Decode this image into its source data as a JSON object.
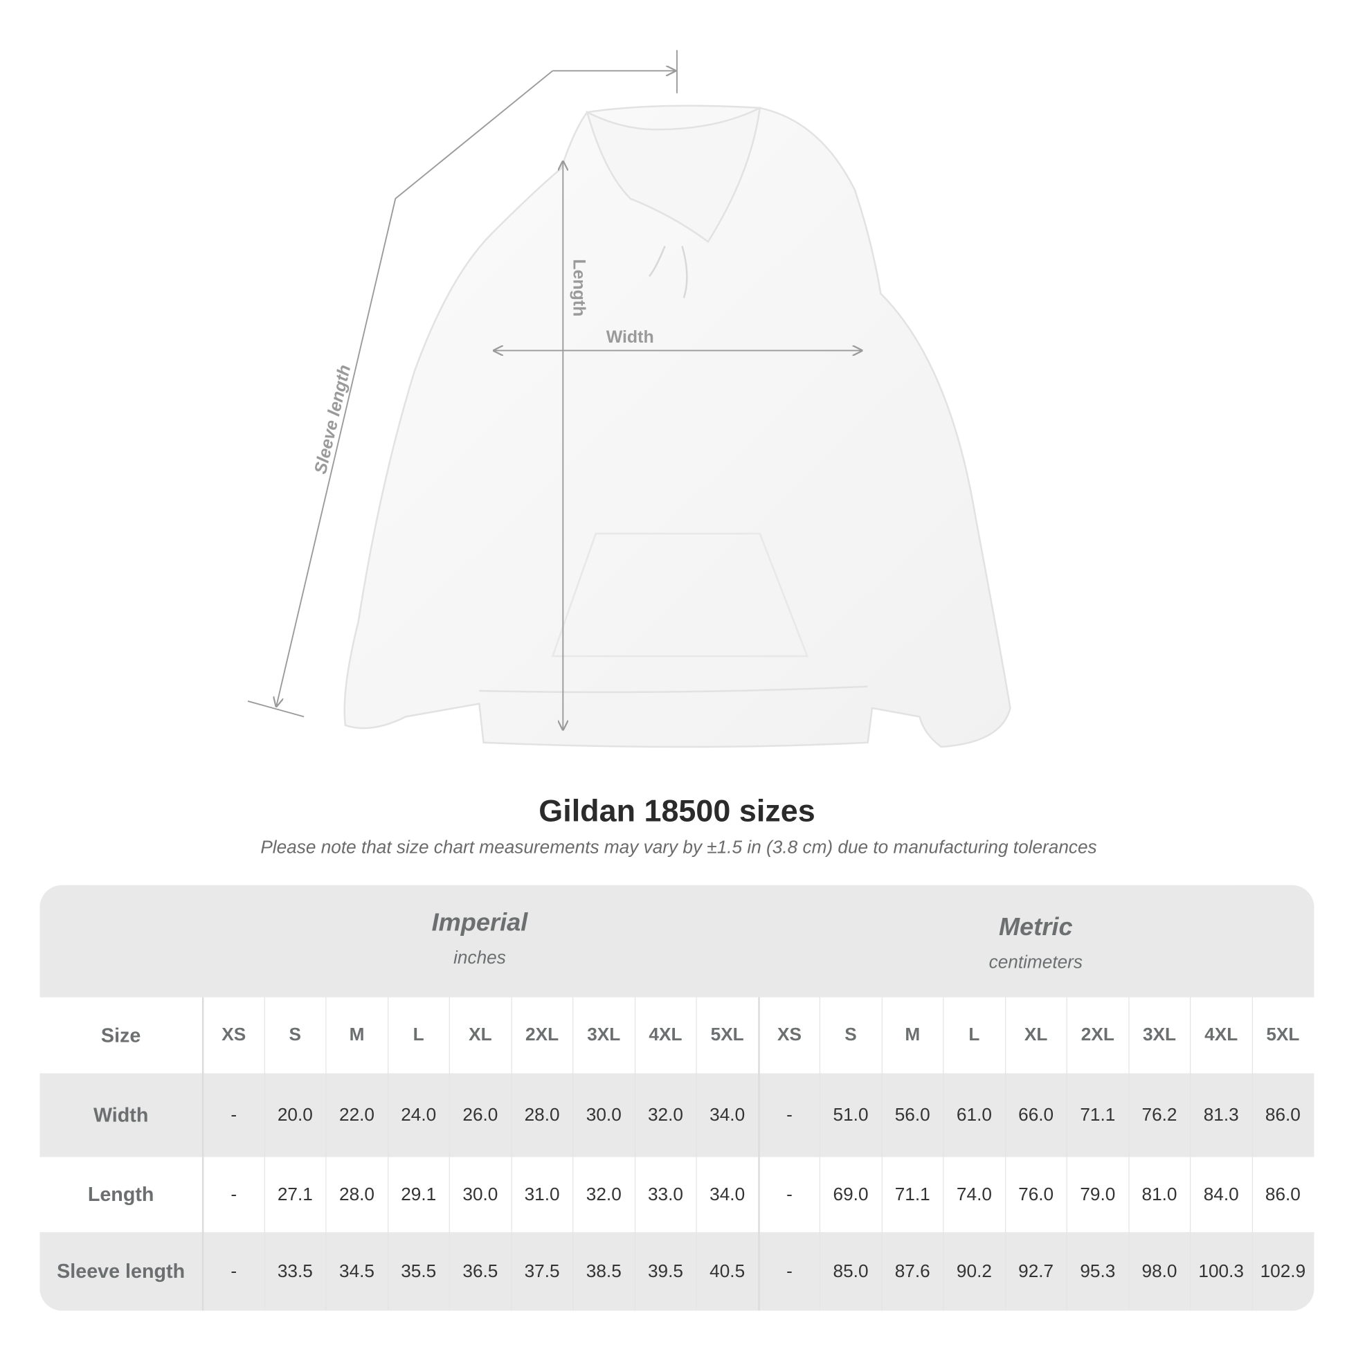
{
  "diagram": {
    "labels": {
      "sleeve": "Sleeve length",
      "length": "Length",
      "width": "Width"
    },
    "line_color": "#9a9a9a"
  },
  "title": "Gildan 18500 sizes",
  "subtitle": "Please note that size chart measurements may vary by ±1.5 in (3.8 cm) due to manufacturing tolerances",
  "table": {
    "groups": [
      {
        "name": "Imperial",
        "unit": "inches"
      },
      {
        "name": "Metric",
        "unit": "centimeters"
      }
    ],
    "size_label": "Size",
    "sizes": [
      "XS",
      "S",
      "M",
      "L",
      "XL",
      "2XL",
      "3XL",
      "4XL",
      "5XL"
    ],
    "rows": [
      {
        "label": "Width",
        "imperial": [
          "-",
          "20.0",
          "22.0",
          "24.0",
          "26.0",
          "28.0",
          "30.0",
          "32.0",
          "34.0"
        ],
        "metric": [
          "-",
          "51.0",
          "56.0",
          "61.0",
          "66.0",
          "71.1",
          "76.2",
          "81.3",
          "86.0"
        ]
      },
      {
        "label": "Length",
        "imperial": [
          "-",
          "27.1",
          "28.0",
          "29.1",
          "30.0",
          "31.0",
          "32.0",
          "33.0",
          "34.0"
        ],
        "metric": [
          "-",
          "69.0",
          "71.1",
          "74.0",
          "76.0",
          "79.0",
          "81.0",
          "84.0",
          "86.0"
        ]
      },
      {
        "label": "Sleeve length",
        "imperial": [
          "-",
          "33.5",
          "34.5",
          "35.5",
          "36.5",
          "37.5",
          "38.5",
          "39.5",
          "40.5"
        ],
        "metric": [
          "-",
          "85.0",
          "87.6",
          "90.2",
          "92.7",
          "95.3",
          "98.0",
          "100.3",
          "102.9"
        ]
      }
    ],
    "colors": {
      "band": "#e9e9e9",
      "label_text": "#6b6f70"
    }
  }
}
